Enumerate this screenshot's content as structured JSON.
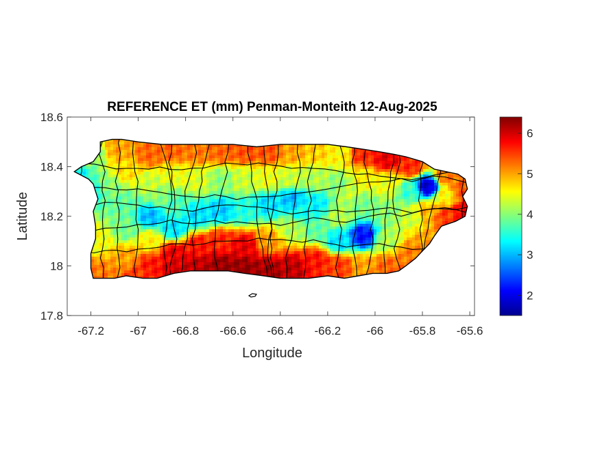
{
  "figure": {
    "title": "REFERENCE ET (mm) Penman-Monteith 12-Aug-2025",
    "xlabel": "Longitude",
    "ylabel": "Latitude"
  },
  "axes": {
    "xlim": [
      -67.3,
      -65.58
    ],
    "ylim": [
      17.8,
      18.6
    ],
    "xticks": [
      -67.2,
      -67.0,
      -66.8,
      -66.6,
      -66.4,
      -66.2,
      -66.0,
      -65.8,
      -65.6
    ],
    "xtick_labels": [
      "-67.2",
      "-67",
      "-66.8",
      "-66.6",
      "-66.4",
      "-66.2",
      "-66",
      "-65.8",
      "-65.6"
    ],
    "yticks": [
      17.8,
      18.0,
      18.2,
      18.4,
      18.6
    ],
    "ytick_labels": [
      "17.8",
      "18",
      "18.2",
      "18.4",
      "18.6"
    ]
  },
  "colorbar": {
    "colormap": "jet",
    "range": [
      1.5,
      6.4
    ],
    "ticks": [
      2,
      3,
      4,
      5,
      6
    ],
    "tick_labels": [
      "2",
      "3",
      "4",
      "5",
      "6"
    ]
  },
  "chart_data": {
    "type": "heatmap",
    "variable": "Reference ET (mm)",
    "value_range": [
      1.5,
      6.4
    ],
    "island_outline_lonlat": [
      [
        -67.27,
        18.38
      ],
      [
        -67.25,
        18.37
      ],
      [
        -67.21,
        18.35
      ],
      [
        -67.19,
        18.33
      ],
      [
        -67.18,
        18.3
      ],
      [
        -67.17,
        18.27
      ],
      [
        -67.19,
        18.22
      ],
      [
        -67.18,
        18.16
      ],
      [
        -67.18,
        18.11
      ],
      [
        -67.2,
        18.05
      ],
      [
        -67.2,
        17.99
      ],
      [
        -67.19,
        17.95
      ],
      [
        -67.15,
        17.95
      ],
      [
        -67.1,
        17.95
      ],
      [
        -67.05,
        17.96
      ],
      [
        -66.98,
        17.95
      ],
      [
        -66.92,
        17.95
      ],
      [
        -66.85,
        17.97
      ],
      [
        -66.78,
        17.98
      ],
      [
        -66.7,
        17.98
      ],
      [
        -66.62,
        17.98
      ],
      [
        -66.55,
        17.97
      ],
      [
        -66.47,
        17.96
      ],
      [
        -66.4,
        17.95
      ],
      [
        -66.35,
        17.95
      ],
      [
        -66.28,
        17.95
      ],
      [
        -66.2,
        17.96
      ],
      [
        -66.13,
        17.95
      ],
      [
        -66.07,
        17.96
      ],
      [
        -66.01,
        17.97
      ],
      [
        -65.95,
        17.97
      ],
      [
        -65.9,
        17.98
      ],
      [
        -65.87,
        18.0
      ],
      [
        -65.83,
        18.03
      ],
      [
        -65.8,
        18.06
      ],
      [
        -65.77,
        18.09
      ],
      [
        -65.75,
        18.12
      ],
      [
        -65.72,
        18.16
      ],
      [
        -65.66,
        18.18
      ],
      [
        -65.62,
        18.2
      ],
      [
        -65.61,
        18.24
      ],
      [
        -65.63,
        18.28
      ],
      [
        -65.61,
        18.31
      ],
      [
        -65.62,
        18.35
      ],
      [
        -65.65,
        18.37
      ],
      [
        -65.7,
        18.38
      ],
      [
        -65.75,
        18.39
      ],
      [
        -65.8,
        18.42
      ],
      [
        -65.87,
        18.44
      ],
      [
        -65.92,
        18.45
      ],
      [
        -65.98,
        18.46
      ],
      [
        -66.05,
        18.47
      ],
      [
        -66.12,
        18.48
      ],
      [
        -66.2,
        18.49
      ],
      [
        -66.28,
        18.49
      ],
      [
        -66.4,
        18.49
      ],
      [
        -66.5,
        18.48
      ],
      [
        -66.6,
        18.49
      ],
      [
        -66.7,
        18.49
      ],
      [
        -66.8,
        18.49
      ],
      [
        -66.9,
        18.49
      ],
      [
        -67.0,
        18.5
      ],
      [
        -67.07,
        18.51
      ],
      [
        -67.11,
        18.51
      ],
      [
        -67.16,
        18.5
      ],
      [
        -67.16,
        18.46
      ],
      [
        -67.19,
        18.42
      ],
      [
        -67.24,
        18.4
      ],
      [
        -67.27,
        18.38
      ]
    ],
    "field_anchors_lonlat_value": [
      [
        -67.27,
        18.36,
        3.3
      ],
      [
        -67.2,
        18.45,
        4.0
      ],
      [
        -67.18,
        18.3,
        3.6
      ],
      [
        -67.17,
        18.1,
        4.5
      ],
      [
        -67.17,
        17.97,
        5.2
      ],
      [
        -67.08,
        18.47,
        5.0
      ],
      [
        -67.05,
        18.38,
        4.7
      ],
      [
        -67.05,
        18.25,
        3.8
      ],
      [
        -67.05,
        18.15,
        3.9
      ],
      [
        -67.05,
        18.03,
        5.0
      ],
      [
        -67.0,
        17.97,
        5.5
      ],
      [
        -66.95,
        18.45,
        5.3
      ],
      [
        -66.95,
        18.33,
        4.3
      ],
      [
        -66.95,
        18.2,
        3.0
      ],
      [
        -66.95,
        18.1,
        4.6
      ],
      [
        -66.95,
        18.0,
        5.7
      ],
      [
        -66.85,
        18.46,
        5.3
      ],
      [
        -66.85,
        18.37,
        4.5
      ],
      [
        -66.85,
        18.25,
        3.7
      ],
      [
        -66.85,
        18.15,
        3.2
      ],
      [
        -66.85,
        18.05,
        5.9
      ],
      [
        -66.85,
        17.98,
        6.0
      ],
      [
        -66.75,
        18.46,
        5.2
      ],
      [
        -66.75,
        18.35,
        4.4
      ],
      [
        -66.75,
        18.2,
        3.2
      ],
      [
        -66.75,
        18.08,
        5.7
      ],
      [
        -66.75,
        18.0,
        6.1
      ],
      [
        -66.65,
        18.46,
        5.3
      ],
      [
        -66.65,
        18.35,
        4.0
      ],
      [
        -66.65,
        18.22,
        3.1
      ],
      [
        -66.65,
        18.1,
        5.6
      ],
      [
        -66.65,
        18.0,
        6.3
      ],
      [
        -66.55,
        18.46,
        5.4
      ],
      [
        -66.55,
        18.35,
        4.3
      ],
      [
        -66.55,
        18.22,
        3.5
      ],
      [
        -66.55,
        18.08,
        5.9
      ],
      [
        -66.55,
        17.99,
        6.3
      ],
      [
        -66.45,
        18.46,
        5.4
      ],
      [
        -66.45,
        18.35,
        4.5
      ],
      [
        -66.45,
        18.25,
        3.2
      ],
      [
        -66.45,
        18.1,
        5.0
      ],
      [
        -66.45,
        17.98,
        6.2
      ],
      [
        -66.35,
        18.46,
        5.0
      ],
      [
        -66.35,
        18.35,
        4.3
      ],
      [
        -66.35,
        18.27,
        3.0
      ],
      [
        -66.35,
        18.15,
        4.2
      ],
      [
        -66.35,
        17.99,
        6.1
      ],
      [
        -66.25,
        18.46,
        4.8
      ],
      [
        -66.25,
        18.35,
        4.2
      ],
      [
        -66.25,
        18.25,
        3.3
      ],
      [
        -66.25,
        18.15,
        3.8
      ],
      [
        -66.25,
        18.02,
        5.7
      ],
      [
        -66.15,
        18.46,
        4.6
      ],
      [
        -66.15,
        18.33,
        4.0
      ],
      [
        -66.15,
        18.2,
        4.2
      ],
      [
        -66.15,
        18.1,
        3.2
      ],
      [
        -66.15,
        18.0,
        5.5
      ],
      [
        -66.05,
        18.45,
        5.6
      ],
      [
        -66.05,
        18.35,
        4.6
      ],
      [
        -66.05,
        18.25,
        3.9
      ],
      [
        -66.05,
        18.12,
        2.2
      ],
      [
        -66.05,
        18.0,
        5.0
      ],
      [
        -65.95,
        18.43,
        5.9
      ],
      [
        -65.95,
        18.33,
        4.5
      ],
      [
        -65.95,
        18.22,
        4.0
      ],
      [
        -65.95,
        18.1,
        4.2
      ],
      [
        -65.95,
        18.0,
        5.3
      ],
      [
        -65.85,
        18.4,
        5.6
      ],
      [
        -65.85,
        18.3,
        3.6
      ],
      [
        -65.85,
        18.2,
        4.3
      ],
      [
        -65.85,
        18.05,
        5.2
      ],
      [
        -65.78,
        18.32,
        1.9
      ],
      [
        -65.78,
        18.22,
        4.9
      ],
      [
        -65.78,
        18.1,
        5.0
      ],
      [
        -65.7,
        18.36,
        5.2
      ],
      [
        -65.7,
        18.28,
        4.6
      ],
      [
        -65.7,
        18.2,
        5.5
      ],
      [
        -65.63,
        18.3,
        5.4
      ],
      [
        -65.63,
        18.22,
        5.8
      ],
      [
        -66.1,
        18.3,
        4.3
      ],
      [
        -66.3,
        18.22,
        3.4
      ],
      [
        -66.9,
        18.28,
        4.0
      ],
      [
        -67.12,
        18.32,
        4.0
      ]
    ]
  }
}
